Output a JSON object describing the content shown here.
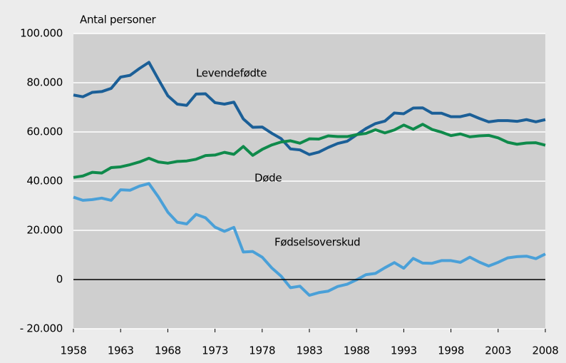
{
  "chart_data": {
    "type": "line",
    "y_axis_label": "Antal personer",
    "x": [
      1958,
      1959,
      1960,
      1961,
      1962,
      1963,
      1964,
      1965,
      1966,
      1967,
      1968,
      1969,
      1970,
      1971,
      1972,
      1973,
      1974,
      1975,
      1976,
      1977,
      1978,
      1979,
      1980,
      1981,
      1982,
      1983,
      1984,
      1985,
      1986,
      1987,
      1988,
      1989,
      1990,
      1991,
      1992,
      1993,
      1994,
      1995,
      1996,
      1997,
      1998,
      1999,
      2000,
      2001,
      2002,
      2003,
      2004,
      2005,
      2006,
      2007,
      2008
    ],
    "series": [
      {
        "name": "Levendefødte",
        "color": "#1b5f97",
        "values": [
          75000,
          74300,
          76100,
          76400,
          77700,
          82300,
          83000,
          85800,
          88300,
          81400,
          74700,
          71300,
          70800,
          75400,
          75500,
          71900,
          71300,
          72100,
          65300,
          61900,
          62000,
          59500,
          57300,
          53100,
          52700,
          50800,
          51800,
          53700,
          55300,
          56200,
          58800,
          61400,
          63400,
          64400,
          67700,
          67400,
          69700,
          69800,
          67600,
          67600,
          66200,
          66200,
          67100,
          65500,
          64100,
          64600,
          64600,
          64300,
          65000,
          64100,
          65000
        ]
      },
      {
        "name": "Døde",
        "color": "#0f8a4b",
        "values": [
          41500,
          42100,
          43600,
          43300,
          45500,
          45800,
          46700,
          47800,
          49300,
          47800,
          47300,
          48000,
          48200,
          48900,
          50400,
          50600,
          51700,
          50900,
          54100,
          50500,
          52900,
          54700,
          55900,
          56400,
          55400,
          57200,
          57100,
          58400,
          58100,
          58100,
          58900,
          59400,
          60900,
          59600,
          60800,
          62800,
          61100,
          63100,
          61000,
          59900,
          58500,
          59200,
          58000,
          58400,
          58600,
          57600,
          55800,
          55000,
          55500,
          55600,
          54600
        ]
      },
      {
        "name": "Fødselsoverskud",
        "color": "#4aa0d8",
        "values": [
          33500,
          32200,
          32500,
          33100,
          32200,
          36500,
          36300,
          38000,
          39000,
          33600,
          27400,
          23300,
          22600,
          26500,
          25100,
          21300,
          19600,
          21200,
          11200,
          11400,
          9100,
          4800,
          1400,
          -3300,
          -2700,
          -6400,
          -5300,
          -4700,
          -2800,
          -1900,
          -100,
          2000,
          2500,
          4800,
          6900,
          4600,
          8600,
          6700,
          6600,
          7700,
          7700,
          7000,
          9100,
          7100,
          5500,
          7000,
          8800,
          9300,
          9500,
          8500,
          10400
        ]
      }
    ],
    "xlim": [
      1958,
      2008
    ],
    "xticks": [
      1958,
      1963,
      1968,
      1973,
      1978,
      1983,
      1988,
      1993,
      1998,
      2003,
      2008
    ],
    "ylim": [
      -20000,
      100000
    ],
    "yticks": [
      {
        "value": -20000,
        "label": "- 20.000"
      },
      0,
      {
        "value": 20000,
        "label": "20.000"
      },
      {
        "value": 40000,
        "label": "40.000"
      },
      {
        "value": 60000,
        "label": "60.000"
      },
      {
        "value": 80000,
        "label": "80.000"
      },
      {
        "value": 100000,
        "label": "100.000"
      }
    ],
    "grid": true
  }
}
